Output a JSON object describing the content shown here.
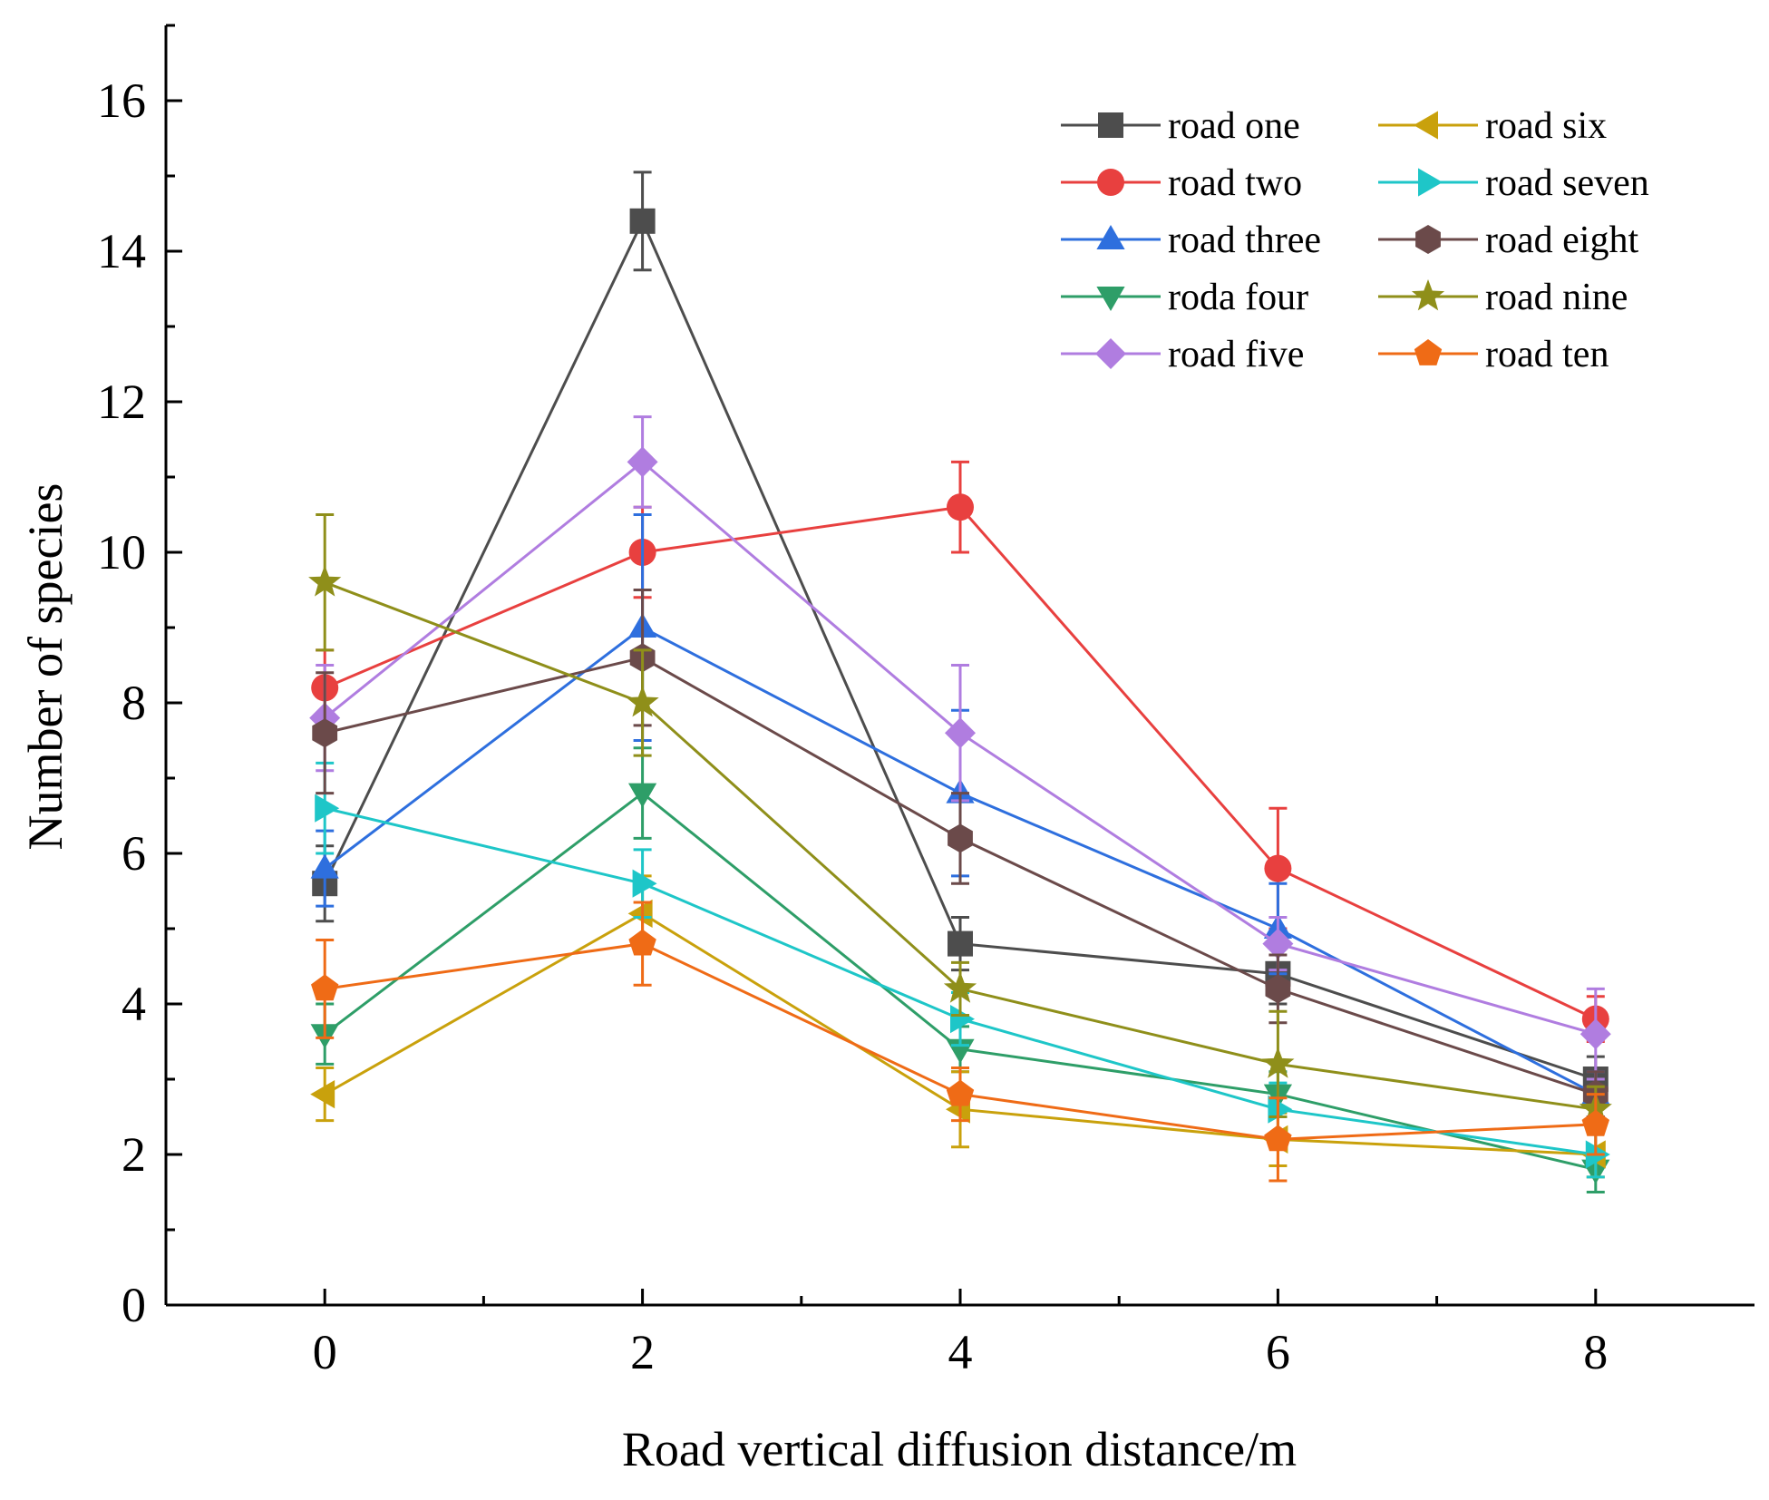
{
  "chart_data": {
    "type": "line",
    "title": "",
    "xlabel": "Road vertical diffusion distance/m",
    "ylabel": "Number of species",
    "xlim": [
      -1,
      9
    ],
    "ylim": [
      0,
      17
    ],
    "xticks": [
      0,
      2,
      4,
      6,
      8
    ],
    "yticks": [
      0,
      2,
      4,
      6,
      8,
      10,
      12,
      14,
      16
    ],
    "x": [
      0,
      2,
      4,
      6,
      8
    ],
    "legend_position": "top-right",
    "series": [
      {
        "name": "road one",
        "color": "#4d4d4d",
        "marker": "square",
        "values": [
          5.6,
          14.4,
          4.8,
          4.4,
          3.0
        ],
        "errors": [
          0.5,
          0.65,
          0.35,
          0.4,
          0.3
        ]
      },
      {
        "name": "road two",
        "color": "#e8403f",
        "marker": "circle",
        "values": [
          8.2,
          10.0,
          10.6,
          5.8,
          3.8
        ],
        "errors": [
          0.5,
          0.6,
          0.6,
          0.8,
          0.3
        ]
      },
      {
        "name": "road three",
        "color": "#2e6fde",
        "marker": "triangle-up",
        "values": [
          5.8,
          9.0,
          6.8,
          5.0,
          2.8
        ],
        "errors": [
          0.5,
          1.5,
          1.1,
          0.6,
          0.3
        ]
      },
      {
        "name": "roda four",
        "color": "#2e9e68",
        "marker": "triangle-down",
        "values": [
          3.6,
          6.8,
          3.4,
          2.8,
          1.8
        ],
        "errors": [
          0.4,
          0.6,
          0.3,
          0.3,
          0.3
        ]
      },
      {
        "name": "road five",
        "color": "#b07de0",
        "marker": "diamond",
        "values": [
          7.8,
          11.2,
          7.6,
          4.8,
          3.6
        ],
        "errors": [
          0.7,
          0.6,
          0.9,
          0.35,
          0.6
        ]
      },
      {
        "name": "road six",
        "color": "#c9a10c",
        "marker": "triangle-left",
        "values": [
          2.8,
          5.2,
          2.6,
          2.2,
          2.0
        ],
        "errors": [
          0.35,
          0.5,
          0.5,
          0.35,
          0.3
        ]
      },
      {
        "name": "road seven",
        "color": "#1ec6c8",
        "marker": "triangle-right",
        "values": [
          6.6,
          5.6,
          3.8,
          2.6,
          2.0
        ],
        "errors": [
          0.6,
          0.45,
          0.35,
          0.35,
          0.3
        ]
      },
      {
        "name": "road eight",
        "color": "#6b4a4a",
        "marker": "hexagon",
        "values": [
          7.6,
          8.6,
          6.2,
          4.2,
          2.8
        ],
        "errors": [
          0.8,
          0.9,
          0.6,
          0.45,
          0.3
        ]
      },
      {
        "name": "road nine",
        "color": "#8f8f1a",
        "marker": "star",
        "values": [
          9.6,
          8.0,
          4.2,
          3.2,
          2.6
        ],
        "errors": [
          0.9,
          0.7,
          0.35,
          0.7,
          0.3
        ]
      },
      {
        "name": "road ten",
        "color": "#ef6b16",
        "marker": "pentagon",
        "values": [
          4.2,
          4.8,
          2.8,
          2.2,
          2.4
        ],
        "errors": [
          0.65,
          0.55,
          0.35,
          0.55,
          0.4
        ]
      }
    ]
  }
}
